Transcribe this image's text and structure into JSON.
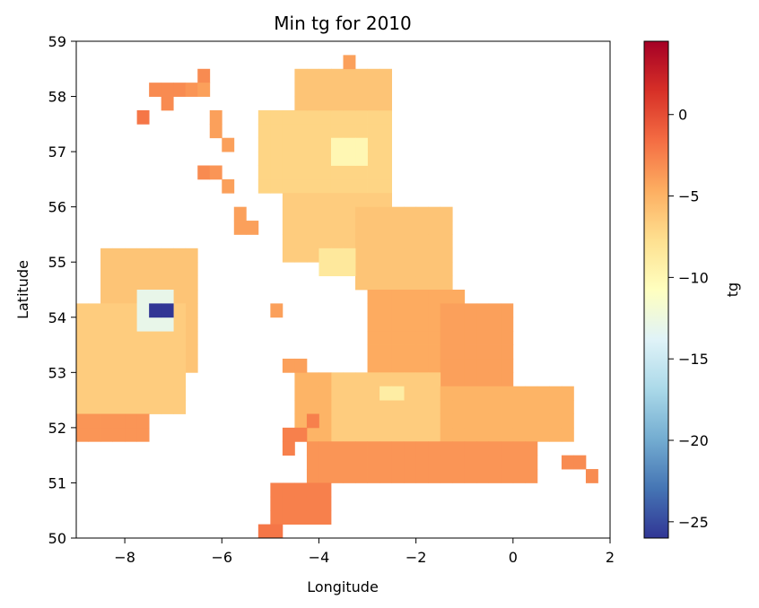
{
  "chart_data": {
    "type": "heatmap",
    "title": "Min tg for 2010",
    "xlabel": "Longitude",
    "ylabel": "Latitude",
    "xlim": [
      -9,
      2
    ],
    "ylim": [
      50,
      59
    ],
    "x_ticks": [
      -8,
      -6,
      -4,
      -2,
      0,
      2
    ],
    "y_ticks": [
      50,
      51,
      52,
      53,
      54,
      55,
      56,
      57,
      58,
      59
    ],
    "cell_size_deg": 0.25,
    "colorbar": {
      "label": "tg",
      "colormap": "RdYlBu_r",
      "range": [
        -26,
        4.5
      ],
      "ticks": [
        0,
        -5,
        -10,
        -15,
        -20,
        -25
      ]
    },
    "cells": [
      [
        -6.5,
        58.25,
        -3
      ],
      [
        -3.5,
        58.5,
        -4
      ],
      [
        -7.5,
        58.0,
        -3
      ],
      [
        -7.25,
        58.0,
        -3
      ],
      [
        -7.0,
        58.0,
        -3
      ],
      [
        -6.75,
        58.0,
        -3.5
      ],
      [
        -6.5,
        58.0,
        -4
      ],
      [
        -7.25,
        57.75,
        -3
      ],
      [
        -7.75,
        57.5,
        -2
      ],
      [
        -6.25,
        57.5,
        -4
      ],
      [
        -6.25,
        57.25,
        -4
      ],
      [
        -6.0,
        57.0,
        -4
      ],
      [
        -6.5,
        56.5,
        -3
      ],
      [
        -6.25,
        56.5,
        -3.5
      ],
      [
        -6.0,
        56.25,
        -4
      ],
      [
        -5.75,
        55.75,
        -4
      ],
      [
        -5.75,
        55.5,
        -4
      ],
      [
        -5.5,
        55.5,
        -4
      ],
      [
        -5.0,
        54.0,
        -4
      ],
      [
        -4.75,
        53.0,
        -4
      ],
      [
        -4.5,
        53.0,
        -4
      ],
      [
        -5.25,
        50.0,
        -2
      ],
      [
        -5.0,
        50.0,
        -2
      ],
      [
        1.5,
        51.0,
        -3
      ],
      [
        1.0,
        51.25,
        -3
      ],
      [
        1.25,
        51.25,
        -3
      ],
      [
        -4.75,
        51.75,
        -2.5
      ],
      [
        -4.75,
        51.5,
        -2.5
      ],
      [
        -4.5,
        51.75,
        -2.5
      ],
      [
        -4.25,
        52.0,
        -2.5
      ]
    ],
    "regions": [
      {
        "lon": [
          -5.25,
          -2.5
        ],
        "lat": [
          56.25,
          57.75
        ],
        "value": -7
      },
      {
        "lon": [
          -4.5,
          -2.5
        ],
        "lat": [
          57.75,
          58.5
        ],
        "value": -6
      },
      {
        "lon": [
          -4.75,
          -2.5
        ],
        "lat": [
          55.0,
          56.25
        ],
        "value": -6.5
      },
      {
        "lon": [
          -3.25,
          -1.25
        ],
        "lat": [
          54.5,
          56.0
        ],
        "value": -6
      },
      {
        "lon": [
          -3.0,
          -1.0
        ],
        "lat": [
          53.0,
          54.5
        ],
        "value": -4.5
      },
      {
        "lon": [
          -1.5,
          0.0
        ],
        "lat": [
          52.75,
          54.25
        ],
        "value": -4
      },
      {
        "lon": [
          -3.75,
          -1.5
        ],
        "lat": [
          51.75,
          53.0
        ],
        "value": -6.5
      },
      {
        "lon": [
          -4.5,
          -3.75
        ],
        "lat": [
          51.75,
          53.0
        ],
        "value": -5
      },
      {
        "lon": [
          -1.5,
          1.25
        ],
        "lat": [
          51.75,
          52.75
        ],
        "value": -5
      },
      {
        "lon": [
          -4.25,
          0.5
        ],
        "lat": [
          51.0,
          51.75
        ],
        "value": -3.5
      },
      {
        "lon": [
          -5.0,
          -3.75
        ],
        "lat": [
          50.25,
          51.0
        ],
        "value": -2.5
      },
      {
        "lon": [
          -8.5,
          -6.5
        ],
        "lat": [
          53.0,
          55.25
        ],
        "value": -6
      },
      {
        "lon": [
          -9.0,
          -6.75
        ],
        "lat": [
          52.25,
          54.25
        ],
        "value": -6.5
      },
      {
        "lon": [
          -9.0,
          -7.5
        ],
        "lat": [
          51.75,
          52.25
        ],
        "value": -3.5
      },
      {
        "lon": [
          -3.75,
          -3.0
        ],
        "lat": [
          56.75,
          57.25
        ],
        "value": -10
      },
      {
        "lon": [
          -2.75,
          -2.25
        ],
        "lat": [
          52.5,
          52.75
        ],
        "value": -9
      },
      {
        "lon": [
          -4.0,
          -3.25
        ],
        "lat": [
          54.75,
          55.25
        ],
        "value": -8.5
      },
      {
        "lon": [
          -7.75,
          -7.0
        ],
        "lat": [
          53.75,
          54.5
        ],
        "value": -13
      },
      {
        "lon": [
          -7.5,
          -7.0
        ],
        "lat": [
          54.0,
          54.25
        ],
        "value": -26
      }
    ]
  }
}
